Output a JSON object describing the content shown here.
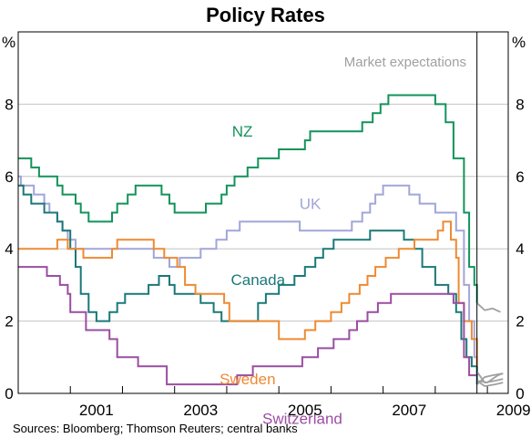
{
  "chart_data": {
    "type": "line",
    "title": "Policy Rates",
    "ylabel_left": "%",
    "ylabel_right": "%",
    "ylim": [
      0,
      10
    ],
    "yticks": [
      0,
      2,
      4,
      6,
      8
    ],
    "xlim": [
      2000.0,
      2009.4
    ],
    "xticks": [
      2001,
      2003,
      2005,
      2007,
      2009
    ],
    "grid": true,
    "forecast_divider_x": 2008.8,
    "annotation": "Market expectations",
    "source": "Sources: Bloomberg; Thomson Reuters; central banks",
    "series": [
      {
        "name": "NZ",
        "color": "#12935a",
        "label_at": [
          2004.3,
          7.1
        ],
        "points": [
          [
            2000.0,
            6.5
          ],
          [
            2000.25,
            6.25
          ],
          [
            2000.4,
            6.0
          ],
          [
            2000.75,
            5.75
          ],
          [
            2000.85,
            5.5
          ],
          [
            2001.1,
            5.25
          ],
          [
            2001.2,
            5.0
          ],
          [
            2001.35,
            4.75
          ],
          [
            2001.8,
            5.0
          ],
          [
            2001.9,
            5.25
          ],
          [
            2002.1,
            5.5
          ],
          [
            2002.25,
            5.75
          ],
          [
            2002.75,
            5.5
          ],
          [
            2002.9,
            5.25
          ],
          [
            2003.0,
            5.0
          ],
          [
            2003.6,
            5.25
          ],
          [
            2003.9,
            5.5
          ],
          [
            2004.0,
            5.75
          ],
          [
            2004.15,
            6.0
          ],
          [
            2004.4,
            6.25
          ],
          [
            2004.6,
            6.5
          ],
          [
            2005.0,
            6.75
          ],
          [
            2005.5,
            7.0
          ],
          [
            2005.6,
            7.25
          ],
          [
            2006.6,
            7.5
          ],
          [
            2006.8,
            7.75
          ],
          [
            2006.95,
            8.0
          ],
          [
            2007.1,
            8.25
          ],
          [
            2008.0,
            8.0
          ],
          [
            2008.2,
            7.5
          ],
          [
            2008.35,
            6.5
          ],
          [
            2008.55,
            5.0
          ],
          [
            2008.65,
            3.5
          ],
          [
            2008.75,
            3.0
          ],
          [
            2008.8,
            2.5
          ]
        ]
      },
      {
        "name": "UK",
        "color": "#a1a5d8",
        "label_at": [
          2005.6,
          5.1
        ],
        "points": [
          [
            2000.0,
            6.0
          ],
          [
            2000.05,
            5.75
          ],
          [
            2000.3,
            5.5
          ],
          [
            2000.5,
            5.25
          ],
          [
            2000.6,
            5.0
          ],
          [
            2000.75,
            4.75
          ],
          [
            2000.85,
            4.5
          ],
          [
            2000.95,
            4.25
          ],
          [
            2001.1,
            4.0
          ],
          [
            2002.5,
            4.0
          ],
          [
            2002.6,
            3.75
          ],
          [
            2002.9,
            3.5
          ],
          [
            2003.1,
            3.75
          ],
          [
            2003.5,
            4.0
          ],
          [
            2003.8,
            4.25
          ],
          [
            2004.0,
            4.5
          ],
          [
            2004.25,
            4.75
          ],
          [
            2005.4,
            4.5
          ],
          [
            2006.4,
            4.75
          ],
          [
            2006.6,
            5.0
          ],
          [
            2006.75,
            5.25
          ],
          [
            2006.85,
            5.5
          ],
          [
            2007.0,
            5.75
          ],
          [
            2007.5,
            5.5
          ],
          [
            2007.7,
            5.25
          ],
          [
            2008.0,
            5.0
          ],
          [
            2008.3,
            5.0
          ],
          [
            2008.4,
            4.5
          ],
          [
            2008.55,
            3.0
          ],
          [
            2008.65,
            2.0
          ],
          [
            2008.75,
            1.0
          ],
          [
            2008.8,
            0.5
          ]
        ]
      },
      {
        "name": "Canada",
        "color": "#1b7878",
        "label_at": [
          2004.6,
          3.0
        ],
        "points": [
          [
            2000.0,
            5.75
          ],
          [
            2000.1,
            5.5
          ],
          [
            2000.25,
            5.25
          ],
          [
            2000.5,
            5.0
          ],
          [
            2000.75,
            4.75
          ],
          [
            2000.85,
            4.5
          ],
          [
            2001.0,
            4.0
          ],
          [
            2001.1,
            3.5
          ],
          [
            2001.2,
            2.75
          ],
          [
            2001.35,
            2.25
          ],
          [
            2001.5,
            2.0
          ],
          [
            2001.75,
            2.25
          ],
          [
            2001.9,
            2.5
          ],
          [
            2002.05,
            2.75
          ],
          [
            2002.5,
            3.0
          ],
          [
            2002.7,
            3.25
          ],
          [
            2002.9,
            3.0
          ],
          [
            2003.0,
            2.75
          ],
          [
            2003.5,
            2.5
          ],
          [
            2003.75,
            2.25
          ],
          [
            2003.9,
            2.0
          ],
          [
            2004.1,
            2.0
          ],
          [
            2004.6,
            2.5
          ],
          [
            2004.75,
            2.75
          ],
          [
            2005.0,
            3.0
          ],
          [
            2005.3,
            3.25
          ],
          [
            2005.5,
            3.5
          ],
          [
            2005.7,
            3.75
          ],
          [
            2005.85,
            4.0
          ],
          [
            2006.05,
            4.25
          ],
          [
            2006.4,
            4.25
          ],
          [
            2006.75,
            4.5
          ],
          [
            2007.0,
            4.5
          ],
          [
            2007.4,
            4.25
          ],
          [
            2007.6,
            4.0
          ],
          [
            2007.75,
            3.5
          ],
          [
            2008.0,
            3.0
          ],
          [
            2008.25,
            2.75
          ],
          [
            2008.4,
            2.25
          ],
          [
            2008.5,
            1.5
          ],
          [
            2008.6,
            1.0
          ],
          [
            2008.7,
            0.75
          ],
          [
            2008.8,
            0.25
          ]
        ]
      },
      {
        "name": "Sweden",
        "color": "#ee8a32",
        "label_at": [
          2004.4,
          0.25
        ],
        "points": [
          [
            2000.0,
            4.0
          ],
          [
            2000.75,
            4.25
          ],
          [
            2000.95,
            4.0
          ],
          [
            2001.25,
            3.75
          ],
          [
            2001.7,
            3.75
          ],
          [
            2001.8,
            4.0
          ],
          [
            2001.9,
            4.25
          ],
          [
            2002.6,
            4.0
          ],
          [
            2002.8,
            3.75
          ],
          [
            2003.05,
            3.5
          ],
          [
            2003.2,
            3.0
          ],
          [
            2003.4,
            2.75
          ],
          [
            2003.95,
            2.5
          ],
          [
            2004.05,
            2.0
          ],
          [
            2004.55,
            2.0
          ],
          [
            2005.0,
            1.5
          ],
          [
            2005.5,
            1.75
          ],
          [
            2005.55,
            1.75
          ],
          [
            2005.7,
            2.0
          ],
          [
            2006.0,
            2.25
          ],
          [
            2006.2,
            2.5
          ],
          [
            2006.35,
            2.75
          ],
          [
            2006.55,
            3.0
          ],
          [
            2006.7,
            3.25
          ],
          [
            2006.85,
            3.5
          ],
          [
            2007.05,
            3.75
          ],
          [
            2007.3,
            4.0
          ],
          [
            2007.6,
            4.25
          ],
          [
            2007.9,
            4.25
          ],
          [
            2008.05,
            4.5
          ],
          [
            2008.15,
            4.75
          ],
          [
            2008.3,
            4.25
          ],
          [
            2008.4,
            3.75
          ],
          [
            2008.45,
            2.5
          ],
          [
            2008.55,
            2.0
          ],
          [
            2008.7,
            1.5
          ],
          [
            2008.8,
            0.75
          ]
        ]
      },
      {
        "name": "Switzerland",
        "color": "#9b4da2",
        "label_at": [
          2005.45,
          -0.85
        ],
        "points": [
          [
            2000.0,
            3.5
          ],
          [
            2000.3,
            3.5
          ],
          [
            2000.55,
            3.25
          ],
          [
            2000.8,
            3.0
          ],
          [
            2000.95,
            2.75
          ],
          [
            2001.0,
            2.25
          ],
          [
            2001.3,
            1.75
          ],
          [
            2001.75,
            1.5
          ],
          [
            2001.9,
            1.0
          ],
          [
            2002.3,
            0.75
          ],
          [
            2002.8,
            0.75
          ],
          [
            2002.85,
            0.25
          ],
          [
            2003.0,
            0.25
          ],
          [
            2004.2,
            0.5
          ],
          [
            2004.5,
            0.75
          ],
          [
            2005.35,
            0.75
          ],
          [
            2005.45,
            1.0
          ],
          [
            2005.75,
            1.25
          ],
          [
            2006.05,
            1.5
          ],
          [
            2006.35,
            1.75
          ],
          [
            2006.5,
            2.0
          ],
          [
            2006.7,
            2.25
          ],
          [
            2006.9,
            2.5
          ],
          [
            2007.15,
            2.75
          ],
          [
            2007.9,
            2.75
          ],
          [
            2008.0,
            2.75
          ],
          [
            2008.25,
            2.75
          ],
          [
            2008.35,
            2.5
          ],
          [
            2008.55,
            1.0
          ],
          [
            2008.65,
            0.5
          ],
          [
            2008.8,
            0.5
          ]
        ]
      }
    ],
    "expectations": [
      {
        "name": "NZ",
        "color": "#a0a0a0",
        "points": [
          [
            2008.8,
            2.5
          ],
          [
            2008.95,
            2.3
          ],
          [
            2009.1,
            2.35
          ],
          [
            2009.25,
            2.25
          ]
        ]
      },
      {
        "name": "Sweden",
        "color": "#a0a0a0",
        "points": [
          [
            2008.8,
            0.25
          ],
          [
            2008.95,
            0.45
          ],
          [
            2009.1,
            0.5
          ],
          [
            2009.3,
            0.55
          ]
        ]
      },
      {
        "name": "Switzerland",
        "color": "#a0a0a0",
        "points": [
          [
            2008.8,
            0.35
          ],
          [
            2009.0,
            0.3
          ],
          [
            2009.2,
            0.5
          ],
          [
            2009.3,
            0.55
          ]
        ]
      },
      {
        "name": "Canada",
        "color": "#a0a0a0",
        "points": [
          [
            2008.8,
            0.35
          ],
          [
            2008.95,
            0.2
          ],
          [
            2009.15,
            0.25
          ],
          [
            2009.3,
            0.3
          ]
        ]
      },
      {
        "name": "UK",
        "color": "#a0a0a0",
        "points": [
          [
            2008.8,
            0.6
          ],
          [
            2008.95,
            0.3
          ],
          [
            2009.15,
            0.35
          ],
          [
            2009.3,
            0.4
          ]
        ]
      }
    ]
  }
}
